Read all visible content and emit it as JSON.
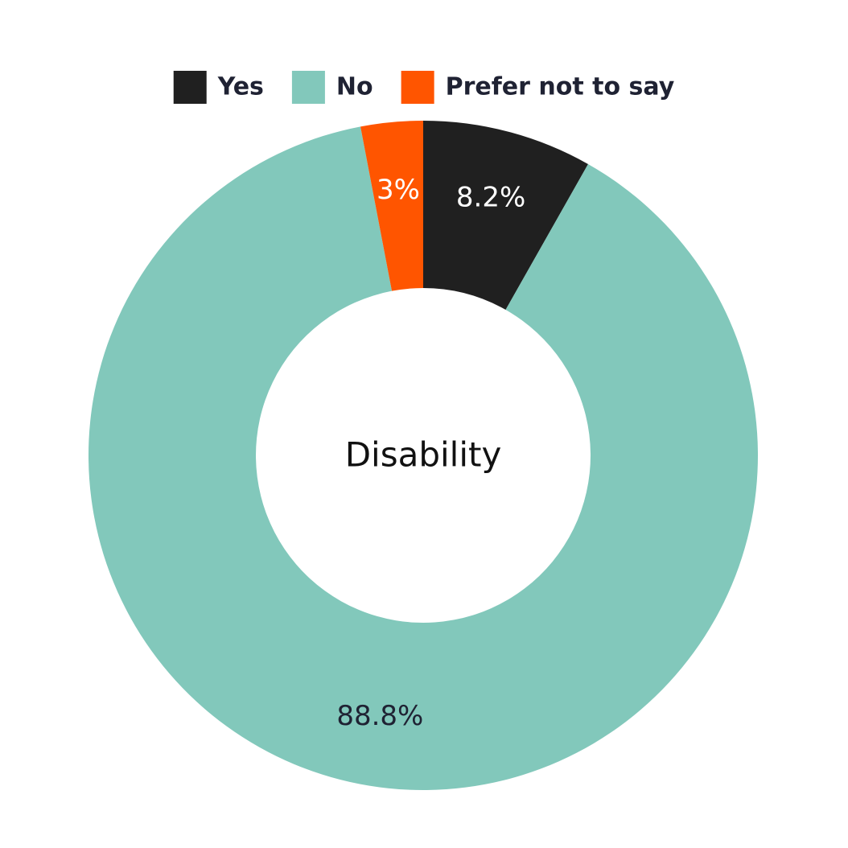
{
  "chart_data": {
    "type": "pie",
    "title": "Disability",
    "categories": [
      "Yes",
      "No",
      "Prefer not to say"
    ],
    "values": [
      8.2,
      88.8,
      3
    ],
    "value_labels": [
      "8.2%",
      "88.8%",
      "3%"
    ],
    "colors": [
      "#202020",
      "#82c8bb",
      "#ff5500"
    ],
    "legend": "top"
  }
}
